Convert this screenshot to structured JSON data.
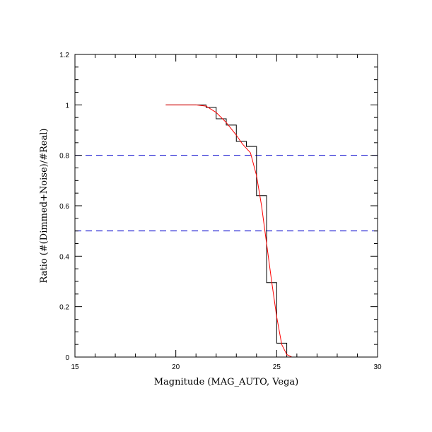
{
  "chart_data": {
    "type": "line",
    "title": "",
    "xlabel": "Magnitude (MAG_AUTO, Vega)",
    "ylabel": "Ratio (#(Dimmed+Noise)/#Real)",
    "xlim": [
      15,
      30
    ],
    "ylim": [
      0,
      1.2
    ],
    "grid": false,
    "x_ticks": [
      15,
      20,
      25,
      30
    ],
    "x_tick_labels": [
      "15",
      "20",
      "25",
      "30"
    ],
    "y_ticks": [
      0,
      0.2,
      0.4,
      0.6,
      0.8,
      1.0,
      1.2
    ],
    "y_tick_labels": [
      "0",
      "0.2",
      "0.4",
      "0.6",
      "0.8",
      "1",
      "1.2"
    ],
    "colors": {
      "histogram": "#000000",
      "fit": "#ff0000",
      "reference": "#0000cc"
    },
    "series": [
      {
        "style": "step-histogram",
        "bin_width": 0.5,
        "bins": [
          {
            "x0": 19.5,
            "y": 1.0
          },
          {
            "x0": 20.0,
            "y": 1.0
          },
          {
            "x0": 20.5,
            "y": 1.0
          },
          {
            "x0": 21.0,
            "y": 1.0
          },
          {
            "x0": 21.5,
            "y": 0.99
          },
          {
            "x0": 22.0,
            "y": 0.945
          },
          {
            "x0": 22.5,
            "y": 0.92
          },
          {
            "x0": 23.0,
            "y": 0.855
          },
          {
            "x0": 23.5,
            "y": 0.835
          },
          {
            "x0": 24.0,
            "y": 0.64
          },
          {
            "x0": 24.5,
            "y": 0.295
          },
          {
            "x0": 25.0,
            "y": 0.055
          },
          {
            "x0": 25.5,
            "y": 0.0
          },
          {
            "x0": 26.0,
            "y": 0.0
          },
          {
            "x0": 26.5,
            "y": 0.0
          },
          {
            "x0": 27.0,
            "y": 0.0
          },
          {
            "x0": 27.5,
            "y": 0.0
          },
          {
            "x0": 28.0,
            "y": 0.0
          },
          {
            "x0": 28.5,
            "y": 0.0
          },
          {
            "x0": 29.0,
            "y": 0.0
          },
          {
            "x0": 29.5,
            "y": 0.0
          }
        ]
      },
      {
        "style": "smooth-fit",
        "x": [
          19.5,
          21.0,
          21.5,
          22.0,
          22.5,
          23.0,
          23.3,
          23.7,
          24.0,
          24.25,
          24.5,
          24.75,
          25.0,
          25.25,
          25.5,
          25.75,
          26.0,
          27.0,
          28.0,
          29.0,
          30.0
        ],
        "y": [
          1.0,
          1.0,
          0.995,
          0.97,
          0.93,
          0.88,
          0.845,
          0.81,
          0.72,
          0.6,
          0.45,
          0.3,
          0.16,
          0.05,
          0.01,
          0.0,
          0.0,
          0.0,
          0.0,
          0.0,
          0.0
        ]
      }
    ],
    "reference_lines": [
      {
        "y": 0.8,
        "style": "dashed"
      },
      {
        "y": 0.5,
        "style": "dashed"
      }
    ]
  }
}
